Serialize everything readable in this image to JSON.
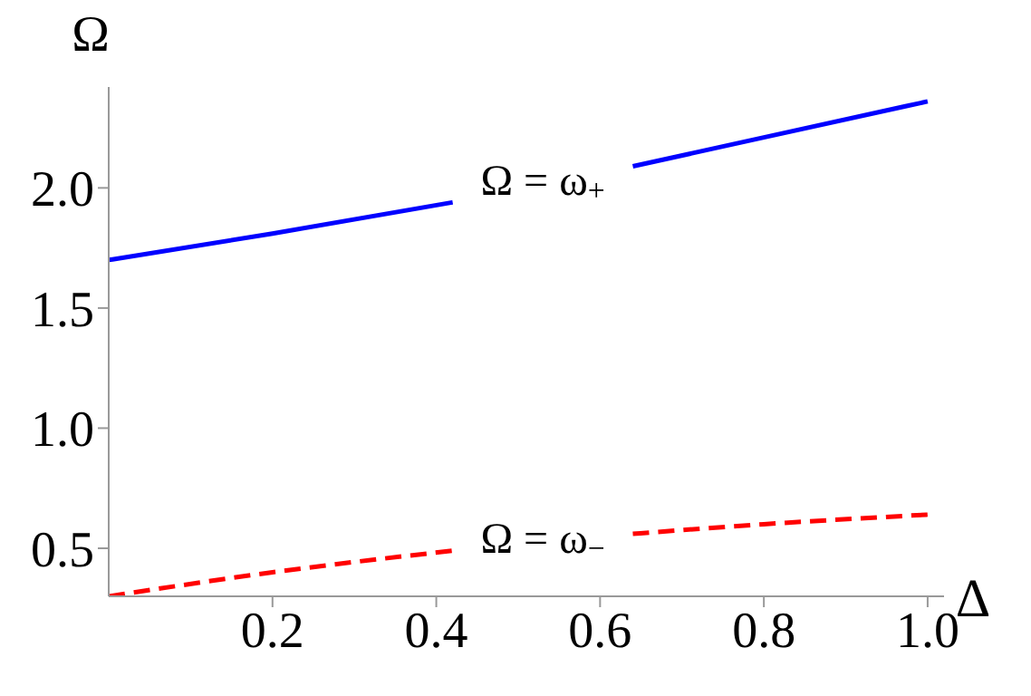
{
  "chart_data": {
    "type": "line",
    "xlabel": "Δ",
    "ylabel": "Ω",
    "xlim": [
      0,
      1.02
    ],
    "ylim": [
      0.3,
      2.42
    ],
    "xticks": [
      0.2,
      0.4,
      0.6,
      0.8,
      {
        "value": 1,
        "label": "1.0"
      }
    ],
    "yticks": [
      0.5,
      {
        "value": 1,
        "label": "1.0"
      },
      1.5,
      {
        "value": 2,
        "label": "2.0"
      }
    ],
    "grid": false,
    "marker": "none",
    "series": [
      {
        "color": "#0000ff",
        "line_style": "solid",
        "x": [
          0,
          0.2,
          0.42,
          0.53,
          0.64,
          0.8,
          1.0
        ],
        "values": [
          1.7,
          1.81,
          1.94,
          null,
          2.09,
          2.21,
          2.36
        ]
      },
      {
        "color": "#ff0000",
        "line_style": "dashed",
        "x": [
          0,
          0.2,
          0.42,
          0.53,
          0.64,
          0.8,
          1.0
        ],
        "values": [
          0.3,
          0.4,
          0.49,
          null,
          0.56,
          0.6,
          0.64
        ]
      }
    ],
    "annotations": [
      "Ω = ω$_{+}$",
      "Ω = ω$_{−}$"
    ]
  }
}
